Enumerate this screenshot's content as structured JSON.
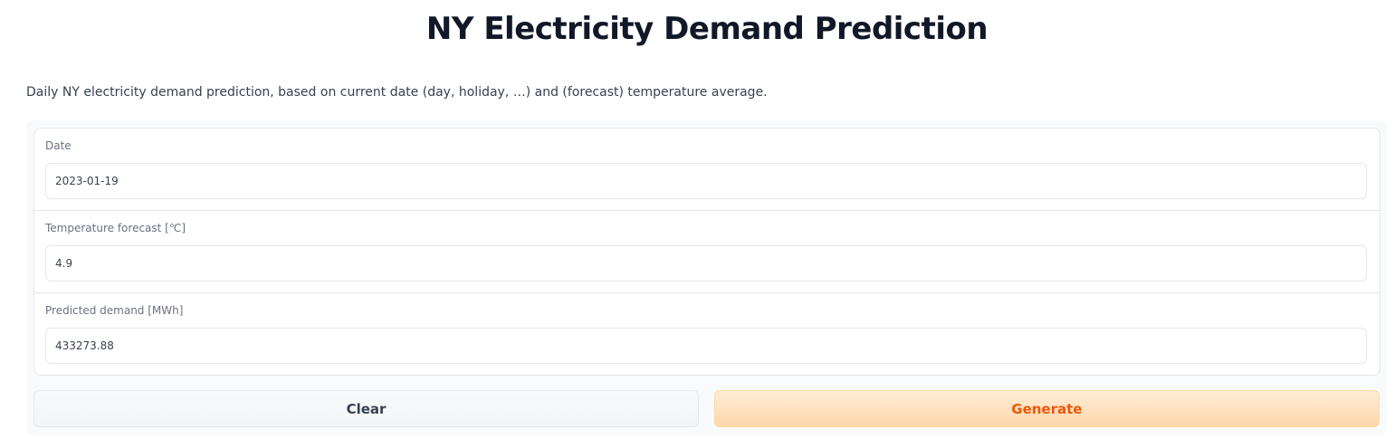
{
  "page": {
    "title": "NY Electricity Demand Prediction",
    "description": "Daily NY electricity demand prediction, based on current date (day, holiday, …) and (forecast) temperature average."
  },
  "fields": {
    "date": {
      "label": "Date",
      "value": "2023-01-19"
    },
    "temperature": {
      "label": "Temperature forecast [℃]",
      "value": "4.9"
    },
    "demand": {
      "label": "Predicted demand [MWh]",
      "value": "433273.88"
    }
  },
  "buttons": {
    "clear_label": "Clear",
    "generate_label": "Generate"
  },
  "colors": {
    "accent": "#ea580c",
    "accent_bg": "#fed7aa"
  }
}
